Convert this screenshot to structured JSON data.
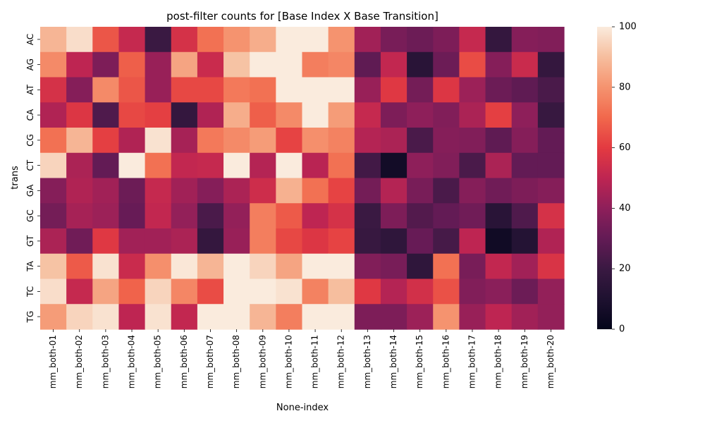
{
  "chart_data": {
    "type": "heatmap",
    "title": "post-filter counts for [Base Index X Base Transition]",
    "xlabel": "None-index",
    "ylabel": "trans",
    "x_categories": [
      "mm_both-01",
      "mm_both-02",
      "mm_both-03",
      "mm_both-04",
      "mm_both-05",
      "mm_both-06",
      "mm_both-07",
      "mm_both-08",
      "mm_both-09",
      "mm_both-10",
      "mm_both-11",
      "mm_both-12",
      "mm_both-13",
      "mm_both-14",
      "mm_both-15",
      "mm_both-16",
      "mm_both-17",
      "mm_both-18",
      "mm_both-19",
      "mm_both-20"
    ],
    "y_categories": [
      "AC",
      "AG",
      "AT",
      "CA",
      "CG",
      "CT",
      "GA",
      "GC",
      "GT",
      "TA",
      "TC",
      "TG"
    ],
    "values": [
      [
        88,
        97,
        66,
        52,
        20,
        56,
        72,
        80,
        86,
        100,
        100,
        80,
        44,
        35,
        32,
        36,
        52,
        18,
        38,
        37
      ],
      [
        78,
        50,
        36,
        68,
        42,
        84,
        53,
        91,
        100,
        100,
        75,
        77,
        29,
        51,
        14,
        32,
        64,
        38,
        53,
        18
      ],
      [
        56,
        38,
        78,
        66,
        42,
        63,
        63,
        74,
        72,
        100,
        100,
        100,
        42,
        59,
        34,
        58,
        43,
        32,
        29,
        24
      ],
      [
        47,
        58,
        25,
        63,
        61,
        18,
        47,
        86,
        68,
        78,
        100,
        82,
        52,
        36,
        40,
        37,
        46,
        61,
        40,
        19
      ],
      [
        72,
        88,
        61,
        47,
        98,
        45,
        74,
        78,
        82,
        62,
        79,
        76,
        48,
        46,
        24,
        38,
        37,
        29,
        38,
        30
      ],
      [
        95,
        46,
        30,
        100,
        72,
        51,
        52,
        100,
        48,
        100,
        49,
        72,
        22,
        6,
        40,
        37,
        24,
        46,
        30,
        30
      ],
      [
        38,
        47,
        44,
        32,
        52,
        44,
        38,
        46,
        54,
        87,
        72,
        62,
        34,
        48,
        35,
        24,
        38,
        33,
        36,
        38
      ],
      [
        34,
        45,
        43,
        31,
        51,
        41,
        24,
        41,
        75,
        67,
        50,
        56,
        20,
        36,
        26,
        30,
        33,
        14,
        25,
        56
      ],
      [
        46,
        33,
        59,
        44,
        44,
        46,
        18,
        42,
        75,
        63,
        58,
        62,
        19,
        16,
        31,
        23,
        50,
        5,
        12,
        47
      ],
      [
        91,
        67,
        98,
        53,
        79,
        99,
        88,
        100,
        95,
        84,
        100,
        100,
        37,
        35,
        16,
        72,
        35,
        51,
        44,
        57
      ],
      [
        97,
        52,
        84,
        69,
        95,
        77,
        64,
        100,
        100,
        98,
        76,
        90,
        59,
        48,
        55,
        65,
        37,
        39,
        32,
        41
      ],
      [
        82,
        95,
        98,
        50,
        98,
        51,
        100,
        100,
        88,
        75,
        100,
        100,
        36,
        36,
        43,
        80,
        42,
        50,
        44,
        41
      ]
    ],
    "vmin": 0,
    "vmax": 100,
    "colorbar_ticks": [
      "0",
      "20",
      "40",
      "60",
      "80",
      "100"
    ],
    "colormap": "rocket",
    "legend": "colorbar right"
  }
}
